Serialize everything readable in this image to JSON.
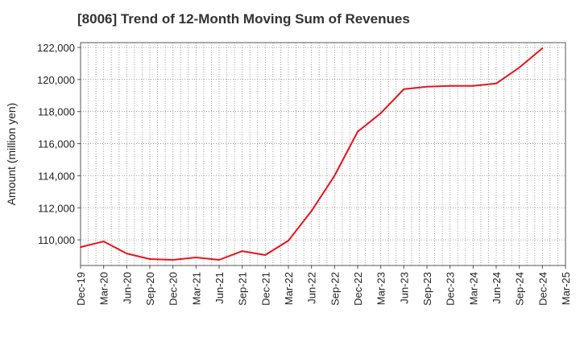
{
  "chart_data": {
    "type": "line",
    "title": "[8006]  Trend of 12-Month Moving Sum of Revenues",
    "xlabel": "",
    "ylabel": "Amount (million yen)",
    "x_tick_labels": [
      "Dec-19",
      "Mar-20",
      "Jun-20",
      "Sep-20",
      "Dec-20",
      "Mar-21",
      "Jun-21",
      "Sep-21",
      "Dec-21",
      "Mar-22",
      "Jun-22",
      "Sep-22",
      "Dec-22",
      "Mar-23",
      "Jun-23",
      "Sep-23",
      "Dec-23",
      "Mar-24",
      "Jun-24",
      "Sep-24",
      "Dec-24",
      "Mar-25"
    ],
    "y_ticks": [
      110000,
      112000,
      114000,
      116000,
      118000,
      120000,
      122000
    ],
    "y_tick_labels": [
      "110,000",
      "112,000",
      "114,000",
      "116,000",
      "118,000",
      "120,000",
      "122,000"
    ],
    "ylim": [
      108400,
      122300
    ],
    "grid": true,
    "series": [
      {
        "color": "#e8141c",
        "x": [
          "Dec-19",
          "Mar-20",
          "Jun-20",
          "Sep-20",
          "Dec-20",
          "Mar-21",
          "Jun-21",
          "Sep-21",
          "Dec-21",
          "Mar-22",
          "Jun-22",
          "Sep-22",
          "Dec-22",
          "Mar-23",
          "Jun-23",
          "Sep-23",
          "Dec-23",
          "Mar-24",
          "Jun-24",
          "Sep-24",
          "Dec-24"
        ],
        "values": [
          109550,
          109900,
          109150,
          108800,
          108750,
          108900,
          108750,
          109300,
          109050,
          109950,
          111800,
          114000,
          116750,
          117900,
          119400,
          119550,
          119600,
          119600,
          119750,
          120750,
          121950
        ]
      }
    ]
  }
}
